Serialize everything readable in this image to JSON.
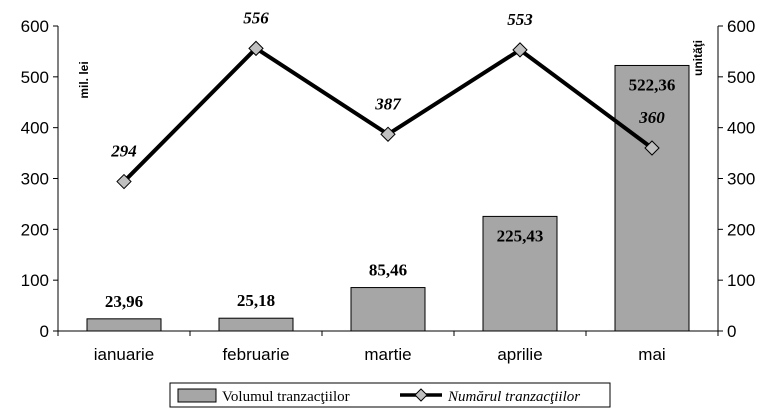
{
  "chart_data": {
    "type": "bar+line",
    "categories": [
      "ianuarie",
      "februarie",
      "martie",
      "aprilie",
      "mai"
    ],
    "series": [
      {
        "name": "Volumul tranzacţiilor",
        "type": "bar",
        "axis": "left",
        "values": [
          23.96,
          25.18,
          85.46,
          225.43,
          522.36
        ],
        "labels": [
          "23,96",
          "25,18",
          "85,46",
          "225,43",
          "522,36"
        ]
      },
      {
        "name": "Numărul tranzacţiilor",
        "type": "line",
        "axis": "right",
        "values": [
          294,
          556,
          387,
          553,
          360
        ],
        "labels": [
          "294",
          "556",
          "387",
          "553",
          "360"
        ]
      }
    ],
    "ylabel_left": "mil. lei",
    "ylabel_right": "unităţi",
    "ylim": [
      0,
      600
    ],
    "yticks": [
      "0",
      "100",
      "200",
      "300",
      "400",
      "500",
      "600"
    ],
    "legend_position": "bottom",
    "colors": {
      "bar_fill": "#a6a6a6",
      "bar_stroke": "#000000",
      "line": "#000000",
      "marker_fill": "#c0c0c0"
    }
  }
}
